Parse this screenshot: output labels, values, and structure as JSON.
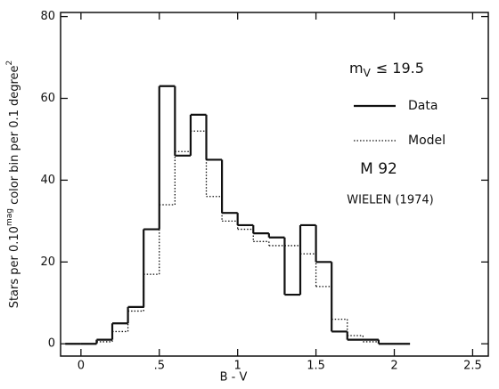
{
  "chart_data": {
    "type": "histogram",
    "xlabel": "B - V",
    "ylabel": [
      "Stars per 0.10",
      "mag",
      " color bin per 0.1 degree",
      "2"
    ],
    "annotations": {
      "mag_symbol": "m",
      "mag_subscript": "V",
      "mag_limit": "≤ 19.5",
      "cluster": "M 92",
      "source": "WIELEN (1974)"
    },
    "bins": [
      -0.1,
      0,
      0.1,
      0.2,
      0.3,
      0.4,
      0.5,
      0.6,
      0.7,
      0.8,
      0.9,
      1.0,
      1.1,
      1.2,
      1.3,
      1.4,
      1.5,
      1.6,
      1.7,
      1.8,
      1.9,
      2.0,
      2.1
    ],
    "series": [
      {
        "name": "Data",
        "color": "#111111",
        "dash": "solid",
        "values": [
          0,
          0,
          1,
          5,
          9,
          28,
          63,
          46,
          56,
          45,
          32,
          29,
          27,
          26,
          12,
          29,
          20,
          3,
          1,
          1,
          0,
          0
        ]
      },
      {
        "name": "Model",
        "color": "#111111",
        "dash": "dotted",
        "values": [
          0,
          0,
          0.5,
          3,
          8,
          17,
          34,
          47,
          52,
          36,
          30,
          28,
          25,
          24,
          24,
          22,
          14,
          6,
          2,
          0.5,
          0,
          0
        ]
      }
    ],
    "xlim": [
      -0.13,
      2.6
    ],
    "ylim": [
      -3,
      81
    ],
    "xticks": [
      0,
      {
        "value": 0.5,
        "label": ".5"
      },
      1,
      1.5,
      2,
      2.5
    ],
    "yticks": [
      0,
      20,
      40,
      60,
      80
    ]
  }
}
